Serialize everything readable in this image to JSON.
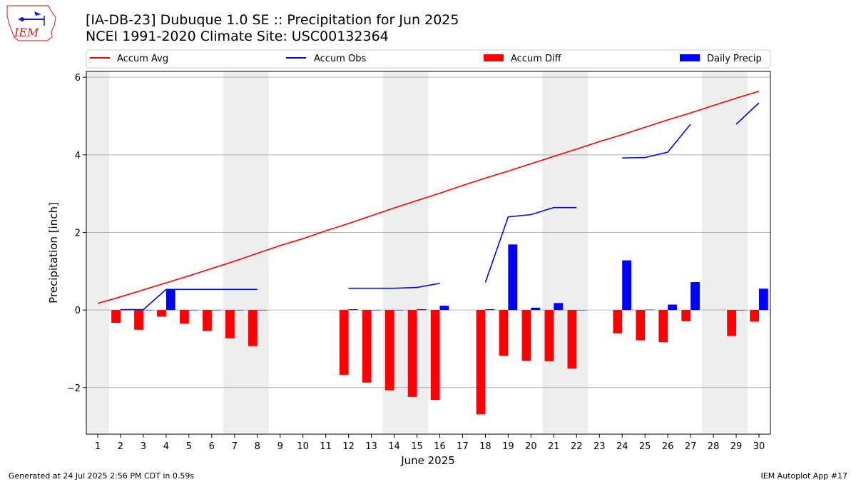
{
  "header": {
    "title_line1": "[IA-DB-23] Dubuque 1.0 SE :: Precipitation for Jun 2025",
    "title_line2": "NCEI 1991-2020 Climate Site: USC00132364",
    "logo_text": "IEM"
  },
  "footer": {
    "left": "Generated at 24 Jul 2025 2:56 PM CDT in 0.59s",
    "right": "IEM Autoplot App #17"
  },
  "colors": {
    "accum_avg": "#ff0000",
    "accum_obs": "#0000ff",
    "accum_diff": "#ff0000",
    "daily_precip": "#0000ff",
    "weekend_shade": "#eeeeee",
    "grid": "#b0b0b0"
  },
  "chart_data": {
    "type": "bar",
    "xlabel": "June 2025",
    "ylabel": "Precipitation [inch]",
    "xlim": [
      0.5,
      30.5
    ],
    "ylim": [
      -3.2,
      6.15
    ],
    "yticks": [
      -2,
      0,
      2,
      4,
      6
    ],
    "ytick_labels": [
      "−2",
      "0",
      "2",
      "4",
      "6"
    ],
    "days": [
      1,
      2,
      3,
      4,
      5,
      6,
      7,
      8,
      9,
      10,
      11,
      12,
      13,
      14,
      15,
      16,
      17,
      18,
      19,
      20,
      21,
      22,
      23,
      24,
      25,
      26,
      27,
      28,
      29,
      30
    ],
    "grid": "horizontal",
    "legend_position": "top",
    "weekend_days": [
      1,
      7,
      8,
      14,
      15,
      21,
      22,
      28,
      29
    ],
    "series": [
      {
        "name": "Accum Avg",
        "kind": "line",
        "values": [
          0.17,
          0.34,
          0.52,
          0.7,
          0.88,
          1.07,
          1.26,
          1.46,
          1.66,
          1.84,
          2.04,
          2.23,
          2.43,
          2.63,
          2.82,
          3.01,
          3.21,
          3.4,
          3.58,
          3.77,
          3.96,
          4.15,
          4.34,
          4.52,
          4.71,
          4.9,
          5.08,
          5.27,
          5.46,
          5.64
        ]
      },
      {
        "name": "Accum Obs",
        "kind": "line",
        "values": [
          null,
          0.01,
          0.01,
          0.53,
          0.53,
          0.53,
          0.53,
          0.53,
          null,
          null,
          null,
          0.56,
          0.56,
          0.56,
          0.58,
          0.69,
          null,
          0.71,
          2.4,
          2.46,
          2.64,
          2.64,
          null,
          3.92,
          3.93,
          4.07,
          4.79,
          null,
          4.79,
          5.34
        ]
      },
      {
        "name": "Accum Diff",
        "kind": "bar",
        "values": [
          null,
          -0.33,
          -0.51,
          -0.17,
          -0.35,
          -0.54,
          -0.73,
          -0.93,
          null,
          null,
          null,
          -1.67,
          -1.87,
          -2.07,
          -2.24,
          -2.32,
          null,
          -2.69,
          -1.18,
          -1.31,
          -1.32,
          -1.51,
          null,
          -0.6,
          -0.78,
          -0.83,
          -0.29,
          null,
          -0.67,
          -0.3
        ]
      },
      {
        "name": "Daily Precip",
        "kind": "bar",
        "values": [
          null,
          0.01,
          0.0,
          0.53,
          0.0,
          0.0,
          0.0,
          0.0,
          null,
          null,
          null,
          0.02,
          0.0,
          0.0,
          0.02,
          0.11,
          null,
          0.02,
          1.69,
          0.06,
          0.18,
          0.0,
          null,
          1.28,
          0.01,
          0.14,
          0.72,
          null,
          0.0,
          0.55
        ]
      }
    ]
  }
}
